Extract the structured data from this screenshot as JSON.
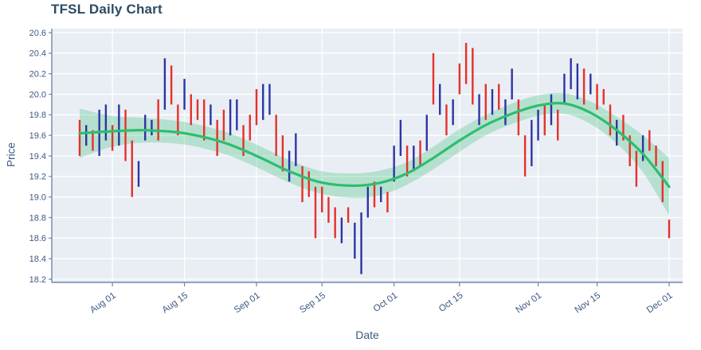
{
  "title": "TFSL Daily Chart",
  "axes": {
    "x_label": "Date",
    "y_label": "Price"
  },
  "colors": {
    "title": "#2b4a63",
    "axis_text": "#3b5b80",
    "axis_line": "#6e87ab",
    "plot_bg": "#e9eef4",
    "grid": "#ffffff",
    "bar_up": "#2d35a3",
    "bar_down": "#e5312b",
    "trend": "#2ebd6e",
    "band": "#2ebd6e"
  },
  "chart_data": {
    "type": "bar",
    "title": "TFSL Daily Chart",
    "xlabel": "Date",
    "ylabel": "Price",
    "ylim": [
      18.2,
      20.6
    ],
    "grid": "on",
    "legend": "none",
    "y_ticks": [
      "18.2",
      "18.4",
      "18.6",
      "18.8",
      "19.0",
      "19.2",
      "19.4",
      "19.6",
      "19.8",
      "20.0",
      "20.2",
      "20.4",
      "20.6"
    ],
    "x_ticks": [
      {
        "i": 5,
        "label": "Aug 01"
      },
      {
        "i": 16,
        "label": "Aug 15"
      },
      {
        "i": 27,
        "label": "Sep 01"
      },
      {
        "i": 37,
        "label": "Sep 15"
      },
      {
        "i": 48,
        "label": "Oct 01"
      },
      {
        "i": 58,
        "label": "Oct 15"
      },
      {
        "i": 70,
        "label": "Nov 01"
      },
      {
        "i": 79,
        "label": "Nov 15"
      },
      {
        "i": 90,
        "label": "Dec 01"
      }
    ],
    "bars_note": "each bar = [low, high, color] where r=down-day red, b=up-day navy; daily price range bars",
    "bars": [
      [
        19.4,
        19.75,
        "r"
      ],
      [
        19.5,
        19.7,
        "b"
      ],
      [
        19.45,
        19.65,
        "r"
      ],
      [
        19.4,
        19.85,
        "b"
      ],
      [
        19.55,
        19.9,
        "b"
      ],
      [
        19.45,
        19.7,
        "r"
      ],
      [
        19.5,
        19.9,
        "b"
      ],
      [
        19.35,
        19.85,
        "r"
      ],
      [
        19.0,
        19.55,
        "r"
      ],
      [
        19.1,
        19.35,
        "b"
      ],
      [
        19.55,
        19.8,
        "b"
      ],
      [
        19.6,
        19.75,
        "b"
      ],
      [
        19.55,
        19.95,
        "r"
      ],
      [
        19.85,
        20.35,
        "b"
      ],
      [
        19.9,
        20.28,
        "r"
      ],
      [
        19.6,
        19.9,
        "r"
      ],
      [
        19.85,
        20.15,
        "b"
      ],
      [
        19.7,
        20.0,
        "r"
      ],
      [
        19.75,
        19.95,
        "r"
      ],
      [
        19.55,
        19.95,
        "r"
      ],
      [
        19.7,
        19.9,
        "b"
      ],
      [
        19.4,
        19.75,
        "r"
      ],
      [
        19.55,
        19.85,
        "r"
      ],
      [
        19.6,
        19.95,
        "b"
      ],
      [
        19.65,
        19.95,
        "b"
      ],
      [
        19.4,
        19.7,
        "r"
      ],
      [
        19.55,
        19.8,
        "r"
      ],
      [
        19.7,
        20.05,
        "r"
      ],
      [
        19.75,
        20.1,
        "b"
      ],
      [
        19.8,
        20.1,
        "b"
      ],
      [
        19.4,
        19.8,
        "r"
      ],
      [
        19.25,
        19.6,
        "r"
      ],
      [
        19.15,
        19.45,
        "b"
      ],
      [
        19.3,
        19.62,
        "b"
      ],
      [
        18.95,
        19.3,
        "r"
      ],
      [
        19.0,
        19.25,
        "r"
      ],
      [
        18.6,
        19.1,
        "r"
      ],
      [
        18.85,
        19.1,
        "r"
      ],
      [
        18.75,
        19.0,
        "r"
      ],
      [
        18.6,
        18.9,
        "r"
      ],
      [
        18.55,
        18.8,
        "b"
      ],
      [
        18.75,
        18.9,
        "r"
      ],
      [
        18.4,
        18.75,
        "b"
      ],
      [
        18.25,
        18.85,
        "b"
      ],
      [
        18.8,
        19.1,
        "b"
      ],
      [
        18.9,
        19.15,
        "r"
      ],
      [
        18.95,
        19.1,
        "b"
      ],
      [
        18.85,
        19.05,
        "r"
      ],
      [
        19.15,
        19.5,
        "b"
      ],
      [
        19.4,
        19.75,
        "b"
      ],
      [
        19.2,
        19.5,
        "r"
      ],
      [
        19.25,
        19.5,
        "b"
      ],
      [
        19.3,
        19.55,
        "r"
      ],
      [
        19.45,
        19.8,
        "b"
      ],
      [
        19.9,
        20.4,
        "r"
      ],
      [
        19.8,
        20.1,
        "b"
      ],
      [
        19.6,
        19.9,
        "r"
      ],
      [
        19.7,
        19.95,
        "b"
      ],
      [
        20.0,
        20.3,
        "r"
      ],
      [
        20.1,
        20.5,
        "r"
      ],
      [
        19.9,
        20.45,
        "r"
      ],
      [
        19.7,
        20.0,
        "b"
      ],
      [
        19.75,
        20.1,
        "r"
      ],
      [
        19.8,
        20.05,
        "b"
      ],
      [
        19.85,
        20.1,
        "r"
      ],
      [
        19.7,
        19.95,
        "b"
      ],
      [
        19.95,
        20.25,
        "b"
      ],
      [
        19.6,
        19.95,
        "r"
      ],
      [
        19.2,
        19.6,
        "r"
      ],
      [
        19.3,
        19.75,
        "b"
      ],
      [
        19.55,
        19.85,
        "b"
      ],
      [
        19.6,
        19.9,
        "r"
      ],
      [
        19.7,
        20.0,
        "b"
      ],
      [
        19.55,
        19.85,
        "r"
      ],
      [
        19.9,
        20.2,
        "b"
      ],
      [
        20.05,
        20.35,
        "b"
      ],
      [
        19.95,
        20.3,
        "b"
      ],
      [
        19.9,
        20.25,
        "r"
      ],
      [
        20.0,
        20.2,
        "b"
      ],
      [
        19.85,
        20.1,
        "r"
      ],
      [
        19.9,
        20.05,
        "r"
      ],
      [
        19.6,
        19.9,
        "r"
      ],
      [
        19.5,
        19.75,
        "b"
      ],
      [
        19.55,
        19.8,
        "r"
      ],
      [
        19.3,
        19.6,
        "r"
      ],
      [
        19.1,
        19.45,
        "r"
      ],
      [
        19.35,
        19.6,
        "b"
      ],
      [
        19.45,
        19.65,
        "r"
      ],
      [
        19.3,
        19.5,
        "r"
      ],
      [
        18.95,
        19.35,
        "r"
      ],
      [
        18.6,
        18.78,
        "r"
      ]
    ],
    "trend": {
      "note": "smoothed (loess) price trend line with confidence band; x = bar index, y = price, hw = band half-width",
      "x": [
        0,
        5,
        10,
        16,
        22,
        27,
        32,
        37,
        42,
        46,
        50,
        54,
        58,
        62,
        66,
        70,
        74,
        78,
        82,
        86,
        90
      ],
      "y": [
        19.62,
        19.64,
        19.65,
        19.62,
        19.53,
        19.4,
        19.25,
        19.14,
        19.11,
        19.14,
        19.23,
        19.38,
        19.55,
        19.7,
        19.81,
        19.89,
        19.91,
        19.82,
        19.65,
        19.42,
        19.1
      ],
      "hw": [
        0.24,
        0.15,
        0.12,
        0.11,
        0.11,
        0.11,
        0.11,
        0.11,
        0.12,
        0.12,
        0.11,
        0.11,
        0.11,
        0.1,
        0.1,
        0.1,
        0.1,
        0.11,
        0.13,
        0.18,
        0.28
      ]
    }
  }
}
